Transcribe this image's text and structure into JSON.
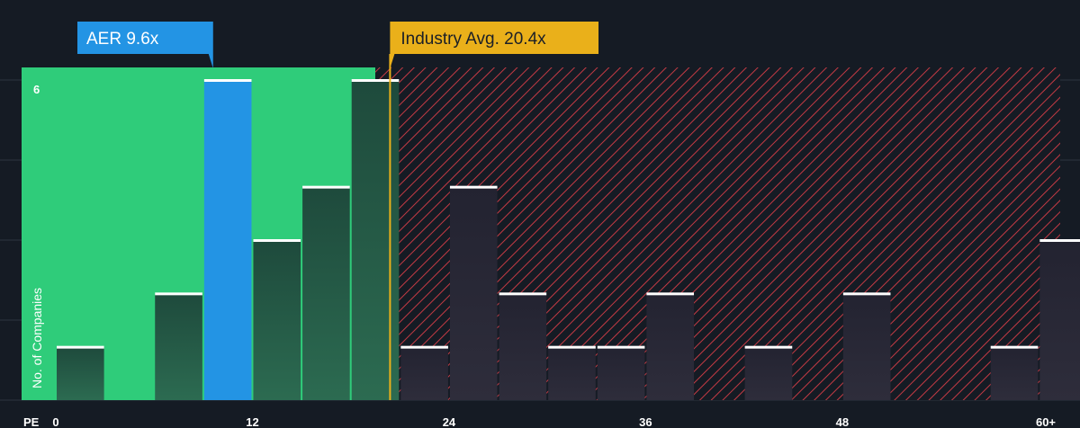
{
  "chart_data": {
    "type": "bar",
    "xlabel": "PE",
    "ylabel": "No. of Companies",
    "x_axis": {
      "min": 0,
      "max": 61.3,
      "ticks": [
        0,
        12,
        24,
        36,
        48
      ],
      "last_tick_label": "60+"
    },
    "y_axis": {
      "min": 0,
      "max": 6,
      "ticks": [
        6
      ]
    },
    "bin_width": 3,
    "bins": [
      {
        "start": 0,
        "value": 1
      },
      {
        "start": 6,
        "value": 2
      },
      {
        "start": 9,
        "value": 6,
        "highlight": true
      },
      {
        "start": 12,
        "value": 3
      },
      {
        "start": 15,
        "value": 4
      },
      {
        "start": 18,
        "value": 6
      },
      {
        "start": 21,
        "value": 1
      },
      {
        "start": 24,
        "value": 4
      },
      {
        "start": 27,
        "value": 2
      },
      {
        "start": 30,
        "value": 1
      },
      {
        "start": 33,
        "value": 1
      },
      {
        "start": 36,
        "value": 2
      },
      {
        "start": 42,
        "value": 1
      },
      {
        "start": 48,
        "value": 2
      },
      {
        "start": 57,
        "value": 1
      },
      {
        "start": 60,
        "value": 3
      }
    ],
    "company": {
      "label": "AER 9.6x",
      "value": 9.6
    },
    "industry_avg": {
      "label": "Industry Avg. 20.4x",
      "value": 20.4
    },
    "green_zone_end": 19.5,
    "colors": {
      "background": "#151b24",
      "green_zone": "#2fcc7a",
      "highlight_bar": "#2394e4",
      "company_callout": "#2394e4",
      "industry_callout": "#eab01a",
      "hatch": "#c43a44",
      "grid": "#2d343f",
      "bar_cap": "#ffffff"
    }
  }
}
